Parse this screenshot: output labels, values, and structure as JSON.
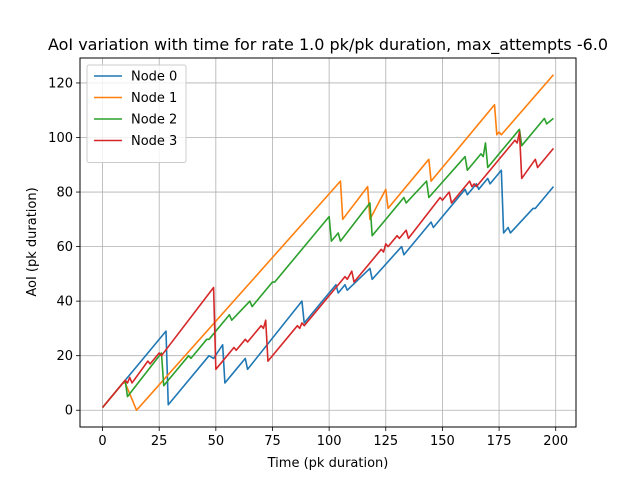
{
  "chart_data": {
    "type": "line",
    "title": "AoI variation with time for rate 1.0 pk/pk duration, max_attempts -6.0",
    "xlabel": "Time (pk duration)",
    "ylabel": "AoI (pk duration)",
    "xlim": [
      -9.95,
      208.95
    ],
    "ylim": [
      -6.15,
      129.15
    ],
    "xticks": [
      0,
      25,
      50,
      75,
      100,
      125,
      150,
      175,
      200
    ],
    "yticks": [
      0,
      20,
      40,
      60,
      80,
      100,
      120
    ],
    "grid": true,
    "legend_position": "top-left",
    "series": [
      {
        "name": "Node 0",
        "color": "#1f77b4",
        "points": [
          [
            0,
            1
          ],
          [
            28,
            29
          ],
          [
            29,
            2
          ],
          [
            47,
            20
          ],
          [
            49,
            19
          ],
          [
            53,
            24
          ],
          [
            54,
            10
          ],
          [
            59,
            15
          ],
          [
            63,
            19
          ],
          [
            64,
            15
          ],
          [
            88,
            40
          ],
          [
            89,
            32
          ],
          [
            103,
            46
          ],
          [
            104,
            43
          ],
          [
            107,
            46
          ],
          [
            108,
            44
          ],
          [
            118,
            52
          ],
          [
            119,
            48
          ],
          [
            132,
            60
          ],
          [
            133,
            57
          ],
          [
            145,
            69
          ],
          [
            146,
            67
          ],
          [
            160,
            81
          ],
          [
            161,
            79
          ],
          [
            165,
            83
          ],
          [
            166,
            81
          ],
          [
            170,
            85
          ],
          [
            171,
            83
          ],
          [
            176,
            88
          ],
          [
            177,
            65
          ],
          [
            179,
            67
          ],
          [
            180,
            65
          ],
          [
            190,
            74
          ],
          [
            191,
            74
          ],
          [
            199,
            82
          ]
        ]
      },
      {
        "name": "Node 1",
        "color": "#ff7f0e",
        "points": [
          [
            0,
            1
          ],
          [
            9,
            10
          ],
          [
            10,
            10
          ],
          [
            15,
            0
          ],
          [
            105,
            84
          ],
          [
            106,
            70
          ],
          [
            117,
            82
          ],
          [
            118,
            70
          ],
          [
            125,
            81
          ],
          [
            126,
            74
          ],
          [
            144,
            92
          ],
          [
            145,
            84
          ],
          [
            173,
            112
          ],
          [
            174,
            101
          ],
          [
            175,
            102
          ],
          [
            176,
            101
          ],
          [
            199,
            123
          ]
        ]
      },
      {
        "name": "Node 2",
        "color": "#2ca02c",
        "points": [
          [
            0,
            1
          ],
          [
            10,
            11
          ],
          [
            11,
            5
          ],
          [
            26,
            21
          ],
          [
            27,
            9
          ],
          [
            38,
            20
          ],
          [
            39,
            19
          ],
          [
            46,
            26
          ],
          [
            47,
            26
          ],
          [
            56,
            35
          ],
          [
            57,
            33
          ],
          [
            65,
            40
          ],
          [
            66,
            38
          ],
          [
            75,
            47
          ],
          [
            76,
            47
          ],
          [
            100,
            71
          ],
          [
            101,
            62
          ],
          [
            104,
            65
          ],
          [
            105,
            62
          ],
          [
            118,
            76
          ],
          [
            119,
            64
          ],
          [
            133,
            78
          ],
          [
            134,
            76
          ],
          [
            143,
            84
          ],
          [
            144,
            78
          ],
          [
            160,
            93
          ],
          [
            161,
            88
          ],
          [
            167,
            94
          ],
          [
            168,
            93
          ],
          [
            169,
            98
          ],
          [
            170,
            89
          ],
          [
            184,
            103
          ],
          [
            185,
            97
          ],
          [
            195,
            107
          ],
          [
            196,
            105
          ],
          [
            199,
            107
          ]
        ]
      },
      {
        "name": "Node 3",
        "color": "#d62728",
        "points": [
          [
            0,
            1
          ],
          [
            10,
            11
          ],
          [
            11,
            10
          ],
          [
            12,
            12
          ],
          [
            13,
            10
          ],
          [
            20,
            18
          ],
          [
            21,
            17
          ],
          [
            25,
            21
          ],
          [
            26,
            20
          ],
          [
            49,
            45
          ],
          [
            50,
            15
          ],
          [
            58,
            23
          ],
          [
            59,
            22
          ],
          [
            63,
            26
          ],
          [
            64,
            25
          ],
          [
            70,
            31
          ],
          [
            71,
            30
          ],
          [
            72,
            33
          ],
          [
            73,
            18
          ],
          [
            86,
            31
          ],
          [
            87,
            30
          ],
          [
            88,
            32
          ],
          [
            89,
            31
          ],
          [
            107,
            49
          ],
          [
            108,
            48
          ],
          [
            110,
            51
          ],
          [
            111,
            47
          ],
          [
            123,
            59
          ],
          [
            124,
            58
          ],
          [
            125,
            61
          ],
          [
            126,
            60
          ],
          [
            130,
            64
          ],
          [
            131,
            63
          ],
          [
            134,
            66
          ],
          [
            135,
            63
          ],
          [
            149,
            78
          ],
          [
            150,
            77
          ],
          [
            153,
            80
          ],
          [
            154,
            76
          ],
          [
            162,
            84
          ],
          [
            163,
            82
          ],
          [
            164,
            83
          ],
          [
            165,
            82
          ],
          [
            182,
            99
          ],
          [
            183,
            98
          ],
          [
            184,
            102
          ],
          [
            185,
            85
          ],
          [
            191,
            92
          ],
          [
            192,
            89
          ],
          [
            199,
            96
          ]
        ]
      }
    ]
  }
}
